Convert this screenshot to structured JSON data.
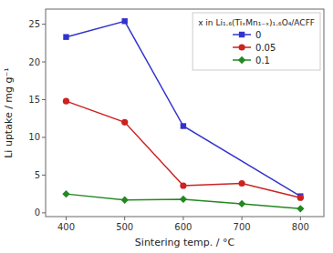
{
  "chart_data": {
    "type": "line",
    "xlabel": "Sintering temp. / °C",
    "ylabel": "Li uptake / mg g⁻¹",
    "legend_title": "x in Li₁.₆(TiₓMn₁₋ₓ)₁.₆O₄/ACFF",
    "legend": "upper right",
    "grid": false,
    "series": [
      {
        "name": "0",
        "color": "#3333cc",
        "marker": "square",
        "x": [
          400,
          500,
          600,
          800
        ],
        "values": [
          23.3,
          25.4,
          11.5,
          2.2
        ]
      },
      {
        "name": "0.05",
        "color": "#cc2222",
        "marker": "circle",
        "x": [
          400,
          500,
          600,
          700,
          800
        ],
        "values": [
          14.8,
          12.0,
          3.6,
          3.9,
          2.0
        ]
      },
      {
        "name": "0.1",
        "color": "#228822",
        "marker": "diamond",
        "x": [
          400,
          500,
          600,
          700,
          800
        ],
        "values": [
          2.5,
          1.7,
          1.8,
          1.2,
          0.55
        ]
      }
    ],
    "xlim": [
      365,
      840
    ],
    "ylim": [
      -0.5,
      27
    ],
    "xticks": [
      400,
      500,
      600,
      700,
      800
    ],
    "yticks": [
      0,
      5,
      10,
      15,
      20,
      25
    ]
  }
}
